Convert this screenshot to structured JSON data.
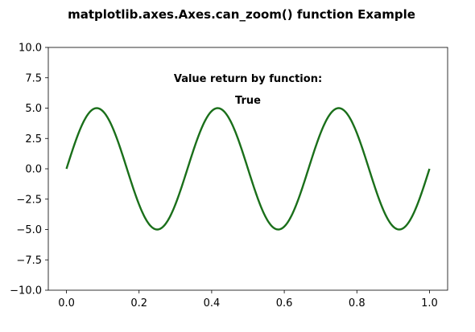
{
  "chart_data": {
    "type": "line",
    "title": "matplotlib.axes.Axes.can_zoom() function Example",
    "xlabel": "",
    "ylabel": "",
    "xlim": [
      -0.05,
      1.05
    ],
    "ylim": [
      -10.0,
      10.0
    ],
    "grid": false,
    "x_ticks": [
      0.0,
      0.2,
      0.4,
      0.6,
      0.8,
      1.0
    ],
    "x_tick_labels": [
      "0.0",
      "0.2",
      "0.4",
      "0.6",
      "0.8",
      "1.0"
    ],
    "y_ticks": [
      -10.0,
      -7.5,
      -5.0,
      -2.5,
      0.0,
      2.5,
      5.0,
      7.5,
      10.0
    ],
    "y_tick_labels": [
      "−10.0",
      "−7.5",
      "−5.0",
      "−2.5",
      "0.0",
      "2.5",
      "5.0",
      "7.5",
      "10.0"
    ],
    "series": [
      {
        "color": "#1a6f1a",
        "function": "y = 5*sin(6*pi*x)",
        "x_range": [
          0.0,
          1.0
        ]
      }
    ],
    "annotations": [
      {
        "text": "Value return by function:",
        "x": 0.5,
        "y": 7.5
      },
      {
        "text": "True",
        "x": 0.5,
        "y": 5.7
      }
    ]
  }
}
